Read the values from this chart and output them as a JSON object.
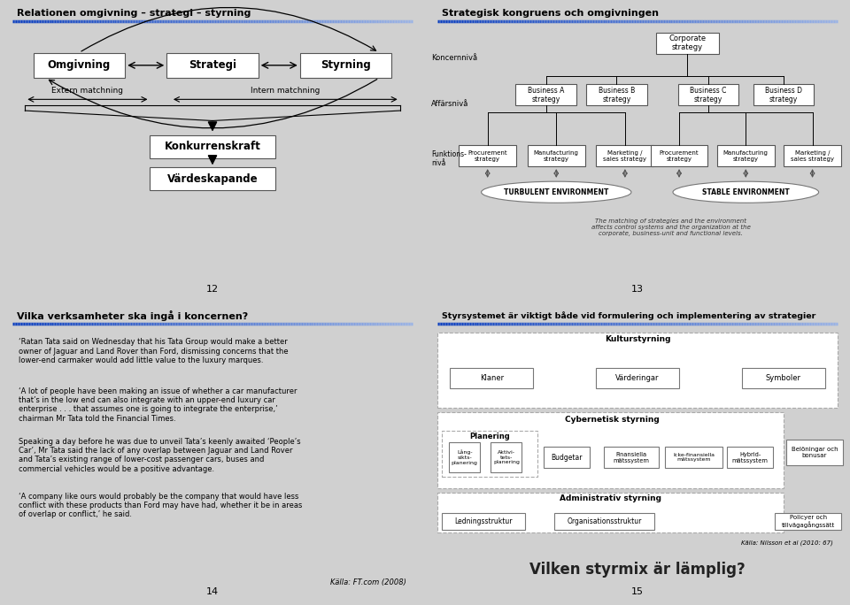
{
  "bg_color": "#d0d0d0",
  "slide_bg": "#ffffff",
  "page_nums": [
    "12",
    "13",
    "14",
    "15"
  ],
  "slide1": {
    "title": "Relationen omgivning – strategi – styrning",
    "boxes_top": [
      "Omgivning",
      "Strategi",
      "Styrning"
    ],
    "label_extern": "Extern matchning",
    "label_intern": "Intern matchning",
    "box_konkurrens": "Konkurrenskraft",
    "box_varde": "Värdeskapande"
  },
  "slide2": {
    "title": "Strategisk kongruens och omgivningen",
    "koncern_label": "Koncernnivå",
    "affar_label": "Affärsnivå",
    "funk_label": "Funktions-\nnivå",
    "corporate_box": "Corporate\nstrategy",
    "business_boxes": [
      "Business A\nstrategy",
      "Business B\nstrategy",
      "Business C\nstrategy",
      "Business D\nstrategy"
    ],
    "functional_boxes_left": [
      "Procurement\nstrategy",
      "Manufacturing\nstrategy",
      "Marketing /\nsales strategy"
    ],
    "functional_boxes_right": [
      "Procurement\nstrategy",
      "Manufacturing\nstrategy",
      "Marketing /\nsales strategy"
    ],
    "env_left": "TURBULENT ENVIRONMENT",
    "env_right": "STABLE ENVIRONMENT",
    "caption": "The matching of strategies and the environment\naffects control systems and the organization at the\ncorporate, business-unit and functional levels."
  },
  "slide3": {
    "title": "Vilka verksamheter ska ingå i koncernen?",
    "para1": "‘Ratan Tata said on Wednesday that his Tata Group would make a better\nowner of Jaguar and Land Rover than Ford, dismissing concerns that the\nlower-end carmaker would add little value to the luxury marques.",
    "para2": "‘A lot of people have been making an issue of whether a car manufacturer\nthat’s in the low end can also integrate with an upper-end luxury car\nenterprise . . . that assumes one is going to integrate the enterprise,’\nchairman Mr Tata told the Financial Times.",
    "para3": "Speaking a day before he was due to unveil Tata’s keenly awaited ‘People’s\nCar’, Mr Tata said the lack of any overlap between Jaguar and Land Rover\nand Tata’s existing range of lower-cost passenger cars, buses and\ncommercial vehicles would be a positive advantage.",
    "para4": "‘A company like ours would probably be the company that would have less\nconflict with these products than Ford may have had, whether it be in areas\nof overlap or conflict,’ he said.",
    "source": "Källa: FT.com (2008)"
  },
  "slide4": {
    "title": "Styrsystemet är viktigt både vid formulering och implementering av strategier",
    "kultur_label": "Kulturstyrning",
    "klaner": "Klaner",
    "varderingar": "Värderingar",
    "symboler": "Symboler",
    "planering": "Planering",
    "cyber_label": "Cybernetisk styrning",
    "lang_label": "Lång-\nsikts-\nplanering",
    "aktiv_label": "Aktivi-\ntets-\nplanering",
    "budgetar": "Budgetar",
    "finansiella": "Finansiella\nmätssystem",
    "icke_fin": "Icke-finansiella\nmätssystem",
    "hybrid": "Hybrid-\nmätssystem",
    "beloning": "Belöningar och\nbonusar",
    "admin_label": "Administrativ styrning",
    "ledning": "Ledningsstruktur",
    "org": "Organisationsstruktur",
    "policyer": "Policyer och\ntillvägagångssätt",
    "source4": "Källa: Nilsson et al (2010: 67)",
    "final_title": "Vilken styrmix är lämplig?"
  }
}
